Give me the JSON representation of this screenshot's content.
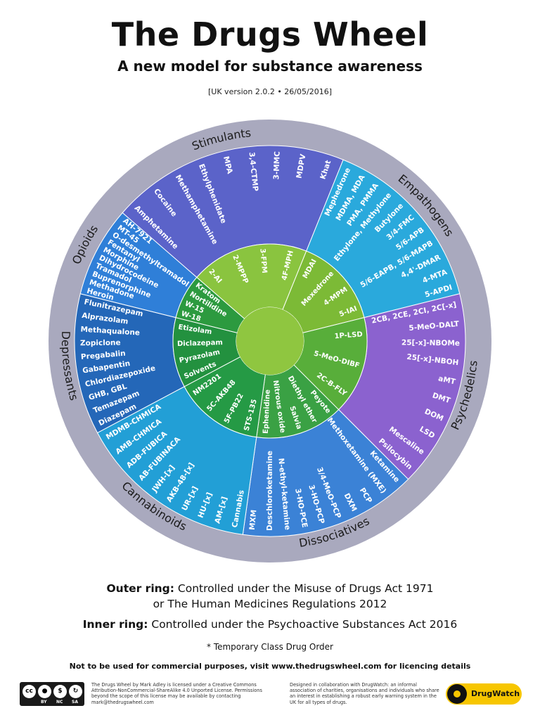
{
  "header": {
    "title": "The Drugs Wheel",
    "subtitle": "A new model for substance awareness",
    "version": "[UK version 2.0.2 • 26/05/2016]"
  },
  "wheel": {
    "categories": [
      {
        "name": "Stimulants",
        "color": "#5b63c9",
        "items": [
          "Amphetamine",
          "Cocaine",
          "Methamphetamine",
          "Ethylphenidate",
          "MPA",
          "3,4-CTMP",
          "3-MMC",
          "MDPV",
          "Khat"
        ]
      },
      {
        "name": "Empathogens",
        "color": "#2aa9dc",
        "items": [
          "Mephedrone",
          "MDMA, MDA",
          "PMA, PMMA",
          "Ethylone, Methylone",
          "Butylone",
          "3/4-FMC",
          "5/6-APB",
          "5/6-EAPB, 5/6-MAPB",
          "4,4'-DMAR",
          "4-MTA",
          "5-APDI"
        ]
      },
      {
        "name": "Psychedelics",
        "color": "#8b62cf",
        "items": [
          "2CB, 2CE, 2CI, 2C[-x]",
          "5-MeO-DALT",
          "25[-x]-NBOMe",
          "25[-x]-NBOH",
          "aMT",
          "DMT",
          "DOM",
          "LSD",
          "Mescaline",
          "Psilocybin"
        ]
      },
      {
        "name": "Dissociatives",
        "color": "#3b82d6",
        "items": [
          "Ketamine",
          "Methoxetamine (MXE)",
          "PCP",
          "DXM",
          "3/4-MeO-PCP",
          "3-HO-PCP",
          "3-HO-PCE",
          "N-ethyl-ketamine",
          "Deschloroketamine",
          "MXM"
        ]
      },
      {
        "name": "Cannabinoids",
        "color": "#229fd6",
        "items": [
          "Cannabis",
          "AM-[x]",
          "HU-[x]",
          "UR-[x]",
          "AKB-48-[x]",
          "JWH-[x]",
          "AB-FUBINACA",
          "ADB-FUBICA",
          "AMB-CHMICA",
          "MDMB-CHMICA"
        ]
      },
      {
        "name": "Depressants",
        "color": "#2467b8",
        "items": [
          "Diazepam",
          "Temazepam",
          "GHB, GBL",
          "Chlordiazepoxide",
          "Gabapentin",
          "Pregabalin",
          "Zopiclone",
          "Methaqualone",
          "Alprazolam",
          "Flunitrazepam"
        ]
      },
      {
        "name": "Opioids",
        "color": "#2f7fd8",
        "items": [
          "Heroin",
          "Methadone",
          "Buprenorphine",
          "Tramadol",
          "Dihydrocodeine",
          "Morphine",
          "Fentanyl",
          "O-desmethyltramadol",
          "MT-45",
          "AH-7921"
        ]
      }
    ],
    "inner": [
      {
        "name": "Stimulants",
        "color": "#8ac43f",
        "items": [
          "2-AI",
          "2-MPPP",
          "3-FPM",
          "4F-MPH"
        ]
      },
      {
        "name": "Empathogens",
        "color": "#7cba36",
        "items": [
          "MDAI",
          "Mexedrone",
          "4-MPM",
          "5-IAI"
        ]
      },
      {
        "name": "Psychedelics",
        "color": "#58ae3a",
        "items": [
          "1P-LSD",
          "5-MeO-DIBF",
          "2C-B-FLY"
        ]
      },
      {
        "name": "Dissociatives",
        "color": "#3aa144",
        "items": [
          "Peyote",
          "Diethyl ether",
          "Salvia",
          "Nitrous oxide",
          "Ephenidine"
        ]
      },
      {
        "name": "Cannabinoids",
        "color": "#259a45",
        "items": [
          "STS-135",
          "5F-PB22",
          "5C-AKB48",
          "NM2201"
        ]
      },
      {
        "name": "Depressants",
        "color": "#23913f",
        "items": [
          "Solvents",
          "Pyrazolam",
          "Diclazepam",
          "Etizolam"
        ]
      },
      {
        "name": "Opioids",
        "color": "#2c9a3f",
        "items": [
          "W-18",
          "W-15",
          "Nortilidine",
          "Kratom"
        ]
      }
    ]
  },
  "legend": {
    "outer_label": "Outer ring:",
    "outer_text": "Controlled under the Misuse of Drugs Act 1971",
    "outer_text2": "or The Human Medicines Regulations 2012",
    "inner_label": "Inner ring:",
    "inner_text": "Controlled under the Psychoactive Substances Act 2016",
    "temporary": "* Temporary Class Drug Order"
  },
  "footer": {
    "disclaimer": "Not to be used for commercial purposes, visit www.thedrugswheel.com for licencing details",
    "cc_labels": [
      "BY",
      "NC",
      "SA"
    ],
    "license": "The Drugs Wheel by Mark Adley is licensed under a Creative Commons Attribution-NonCommercial-ShareAlike 4.0 Unported License. Permissions beyond the scope of this license may be available by contacting mark@thedrugswheel.com",
    "collab": "Designed in collaboration with DrugWatch: an informal association of charities, organisations and individuals who share an interest in establishing a robust early warning system in the UK for all types of drugs.",
    "logo_text": "DrugWatch"
  }
}
